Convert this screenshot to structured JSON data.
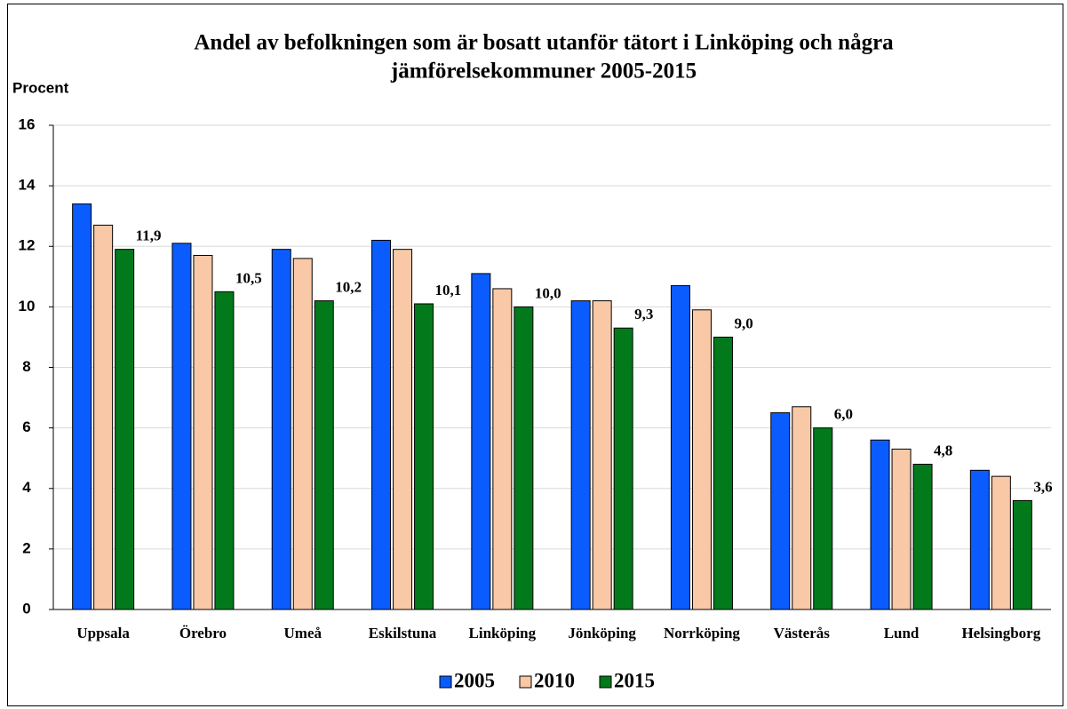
{
  "chart_data": {
    "type": "bar",
    "title": [
      "Andel av befolkningen som är bosatt utanför tätort  i Linköping och några",
      "jämförelsekommuner 2005-2015"
    ],
    "y_label": "Procent",
    "categories": [
      "Uppsala",
      "Örebro",
      "Umeå",
      "Eskilstuna",
      "Linköping",
      "Jönköping",
      "Norrköping",
      "Västerås",
      "Lund",
      "Helsingborg"
    ],
    "series": [
      {
        "name": "2005",
        "color": "#0b5cff",
        "values": [
          13.4,
          12.1,
          11.9,
          12.2,
          11.1,
          10.2,
          10.7,
          6.5,
          5.6,
          4.6
        ]
      },
      {
        "name": "2010",
        "color": "#f9c8a6",
        "values": [
          12.7,
          11.7,
          11.6,
          11.9,
          10.6,
          10.2,
          9.9,
          6.7,
          5.3,
          4.4
        ]
      },
      {
        "name": "2015",
        "color": "#027a1c",
        "values": [
          11.9,
          10.5,
          10.2,
          10.1,
          10.0,
          9.3,
          9.0,
          6.0,
          4.8,
          3.6
        ],
        "value_labels": [
          "11,9",
          "10,5",
          "10,2",
          "10,1",
          "10,0",
          "9,3",
          "9,0",
          "6,0",
          "4,8",
          "3,6"
        ]
      }
    ],
    "ylim": [
      0,
      16
    ],
    "yticks": [
      0,
      2,
      4,
      6,
      8,
      10,
      12,
      14,
      16
    ],
    "grid": true,
    "legend": "bottom"
  }
}
